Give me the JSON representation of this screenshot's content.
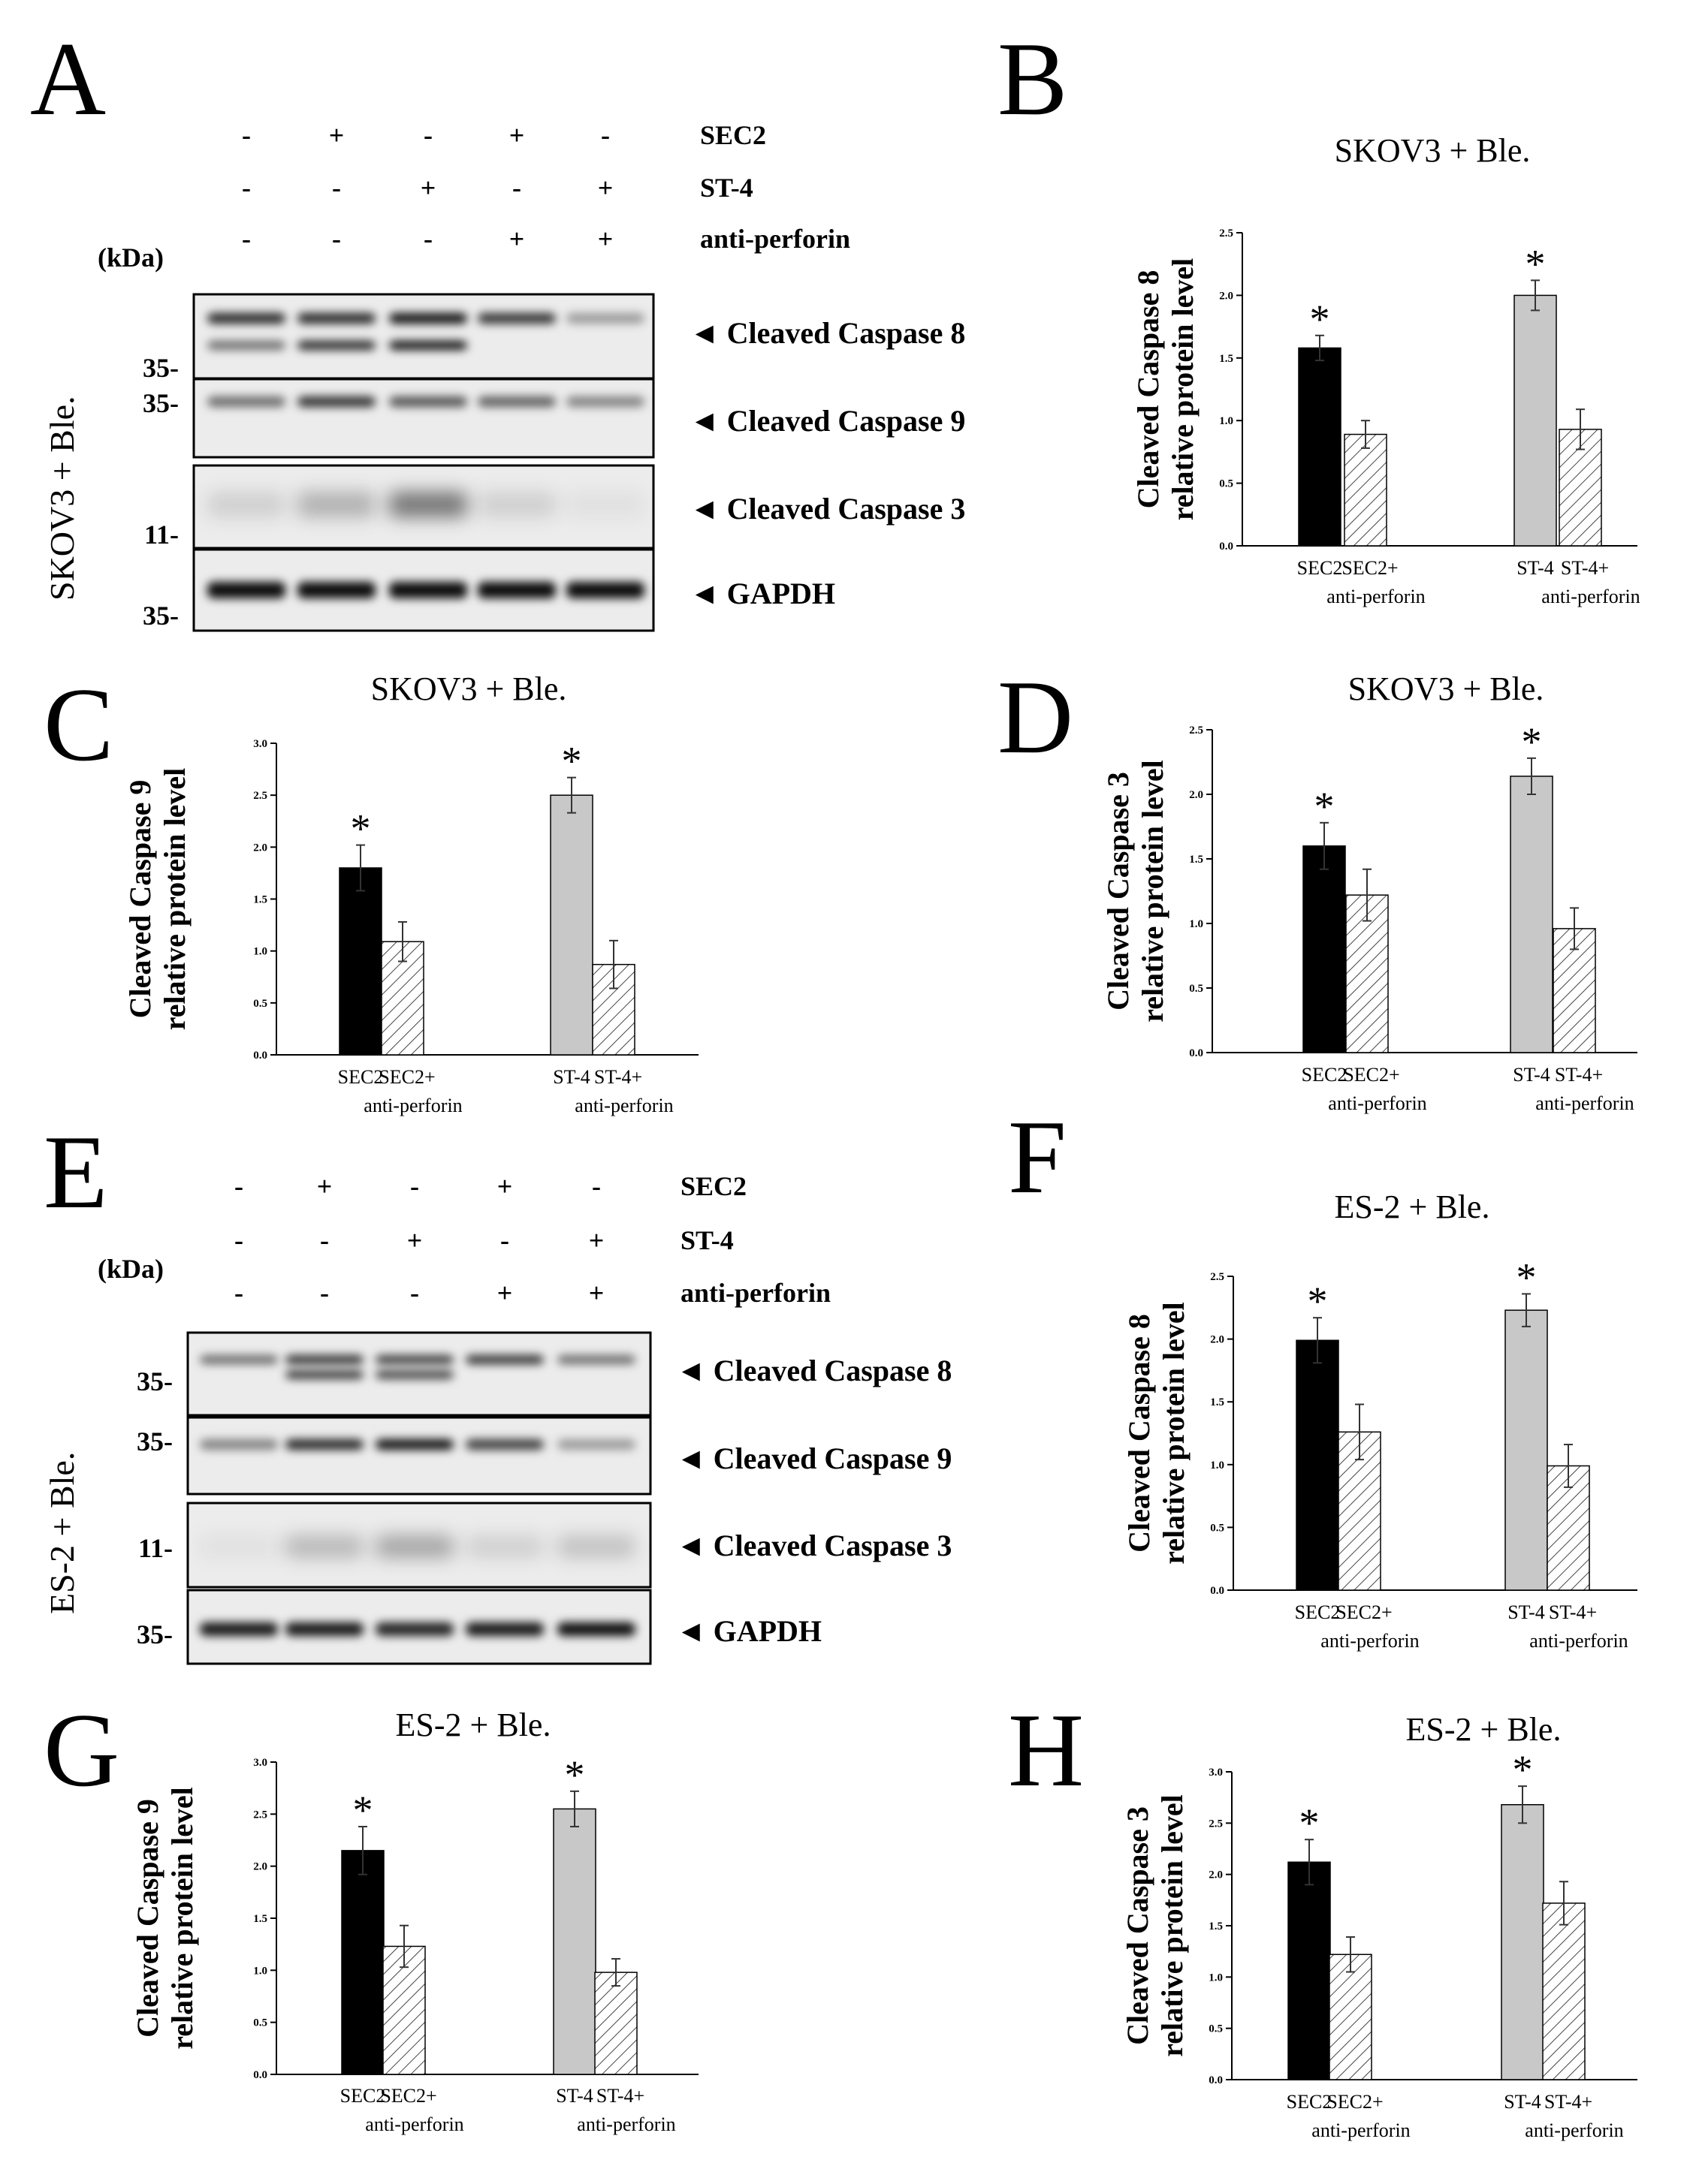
{
  "figure": {
    "panel_letters": [
      "A",
      "B",
      "C",
      "D",
      "E",
      "F",
      "G",
      "H"
    ],
    "blots": [
      {
        "letter": "A",
        "cell_line": "SKOV3 + Ble.",
        "kda_label": "(kDa)",
        "treatments": [
          {
            "name": "SEC2",
            "signs": [
              "-",
              "+",
              "-",
              "+",
              "-"
            ]
          },
          {
            "name": "ST-4",
            "signs": [
              "-",
              "-",
              "+",
              "-",
              "+"
            ]
          },
          {
            "name": "anti-perforin",
            "signs": [
              "-",
              "-",
              "-",
              "+",
              "+"
            ]
          }
        ],
        "bands": [
          {
            "label": "◄ Cleaved Caspase 8",
            "mw": "35-"
          },
          {
            "label": "◄ Cleaved Caspase 9",
            "mw": "35-"
          },
          {
            "label": "◄ Cleaved Caspase 3",
            "mw": "11-"
          },
          {
            "label": "◄ GAPDH",
            "mw": "35-"
          }
        ]
      },
      {
        "letter": "E",
        "cell_line": "ES-2 + Ble.",
        "kda_label": "(kDa)",
        "treatments": [
          {
            "name": "SEC2",
            "signs": [
              "-",
              "+",
              "-",
              "+",
              "-"
            ]
          },
          {
            "name": "ST-4",
            "signs": [
              "-",
              "-",
              "+",
              "-",
              "+"
            ]
          },
          {
            "name": "anti-perforin",
            "signs": [
              "-",
              "-",
              "-",
              "+",
              "+"
            ]
          }
        ],
        "bands": [
          {
            "label": "◄ Cleaved Caspase 8",
            "mw": "35-"
          },
          {
            "label": "◄ Cleaved Caspase 9",
            "mw": "35-"
          },
          {
            "label": "◄ Cleaved Caspase 3",
            "mw": "11-"
          },
          {
            "label": "◄ GAPDH",
            "mw": "35-"
          }
        ]
      }
    ],
    "colors": {
      "sec2_bar": "#000000",
      "st4_bar": "#c8c8c8",
      "hatched_bar": "#ffffff",
      "blot_bg": "#ececec"
    }
  },
  "chart_data": [
    {
      "panel": "B",
      "type": "bar",
      "title": "SKOV3 + Ble.",
      "ylabel": [
        "Cleaved Caspase 8",
        "relative protein level"
      ],
      "ylim": [
        0,
        2.5
      ],
      "yticks": [
        "0.0",
        "0.5",
        "1.0",
        "1.5",
        "2.0",
        "2.5"
      ],
      "categories": [
        "SEC2",
        "SEC2+\nanti-perforin",
        "ST-4",
        "ST-4+\nanti-perforin"
      ],
      "values": [
        1.58,
        0.89,
        2.0,
        0.93
      ],
      "errors": [
        0.1,
        0.11,
        0.12,
        0.16
      ],
      "significance": [
        "*",
        "",
        "*",
        ""
      ]
    },
    {
      "panel": "C",
      "type": "bar",
      "title": "SKOV3 + Ble.",
      "ylabel": [
        "Cleaved Caspase 9",
        "relative protein level"
      ],
      "ylim": [
        0,
        3.0
      ],
      "yticks": [
        "0.0",
        "0.5",
        "1.0",
        "1.5",
        "2.0",
        "2.5",
        "3.0"
      ],
      "categories": [
        "SEC2",
        "SEC2+\nanti-perforin",
        "ST-4",
        "ST-4+\nanti-perforin"
      ],
      "values": [
        1.8,
        1.09,
        2.5,
        0.87
      ],
      "errors": [
        0.22,
        0.19,
        0.17,
        0.23
      ],
      "significance": [
        "*",
        "",
        "*",
        ""
      ]
    },
    {
      "panel": "D",
      "type": "bar",
      "title": "SKOV3 + Ble.",
      "ylabel": [
        "Cleaved Caspase 3",
        "relative protein level"
      ],
      "ylim": [
        0,
        2.5
      ],
      "yticks": [
        "0.0",
        "0.5",
        "1.0",
        "1.5",
        "2.0",
        "2.5"
      ],
      "categories": [
        "SEC2",
        "SEC2+\nanti-perforin",
        "ST-4",
        "ST-4+\nanti-perforin"
      ],
      "values": [
        1.6,
        1.22,
        2.14,
        0.96
      ],
      "errors": [
        0.18,
        0.2,
        0.14,
        0.16
      ],
      "significance": [
        "*",
        "",
        "*",
        ""
      ]
    },
    {
      "panel": "F",
      "type": "bar",
      "title": "ES-2 + Ble.",
      "ylabel": [
        "Cleaved Caspase 8",
        "relative protein level"
      ],
      "ylim": [
        0,
        2.5
      ],
      "yticks": [
        "0.0",
        "0.5",
        "1.0",
        "1.5",
        "2.0",
        "2.5"
      ],
      "categories": [
        "SEC2",
        "SEC2+\nanti-perforin",
        "ST-4",
        "ST-4+\nanti-perforin"
      ],
      "values": [
        1.99,
        1.26,
        2.23,
        0.99
      ],
      "errors": [
        0.18,
        0.22,
        0.13,
        0.17
      ],
      "significance": [
        "*",
        "",
        "*",
        ""
      ]
    },
    {
      "panel": "G",
      "type": "bar",
      "title": "ES-2 + Ble.",
      "ylabel": [
        "Cleaved Caspase 9",
        "relative protein level"
      ],
      "ylim": [
        0,
        3.0
      ],
      "yticks": [
        "0.0",
        "0.5",
        "1.0",
        "1.5",
        "2.0",
        "2.5",
        "3.0"
      ],
      "categories": [
        "SEC2",
        "SEC2+\nanti-perforin",
        "ST-4",
        "ST-4+\nanti-perforin"
      ],
      "values": [
        2.15,
        1.23,
        2.55,
        0.98
      ],
      "errors": [
        0.23,
        0.2,
        0.17,
        0.13
      ],
      "significance": [
        "*",
        "",
        "*",
        ""
      ]
    },
    {
      "panel": "H",
      "type": "bar",
      "title": "ES-2 + Ble.",
      "ylabel": [
        "Cleaved Caspase 3",
        "relative protein level"
      ],
      "ylim": [
        0,
        3.0
      ],
      "yticks": [
        "0.0",
        "0.5",
        "1.0",
        "1.5",
        "2.0",
        "2.5",
        "3.0"
      ],
      "categories": [
        "SEC2",
        "SEC2+\nanti-perforin",
        "ST-4",
        "ST-4+\nanti-perforin"
      ],
      "values": [
        2.12,
        1.22,
        2.68,
        1.72
      ],
      "errors": [
        0.22,
        0.17,
        0.18,
        0.21
      ],
      "significance": [
        "*",
        "",
        "*",
        ""
      ]
    }
  ]
}
